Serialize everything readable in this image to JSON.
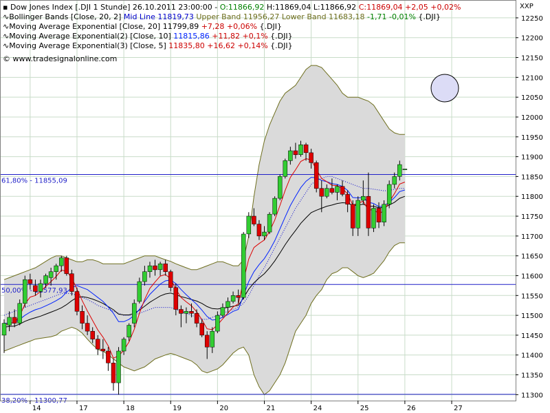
{
  "colors": {
    "up": "#32cd32",
    "down": "#dd0000",
    "band_fill": "#dadada",
    "band_line": "#6e6e1e",
    "mid_line": "#0000cc",
    "ema20": "#000000",
    "ema10": "#0022ff",
    "ema5": "#dd0000",
    "fib": "#1e1ec8",
    "grid": "#c8dcc8",
    "marker_fill": "#dcdcf6",
    "marker_stroke": "#000000"
  },
  "header": {
    "line1": {
      "prefix": "Dow Jones Index [.DJI  1 Stunde] 26.10.2011 23:00:00 - ",
      "open": "O:11866,92",
      "hl": " H:11869,04 L:11866,92 ",
      "close": "C:11869,04 +2,05 +0,02%"
    },
    "line2": {
      "prefix": "Bollinger Bands [Close, 20, 2] ",
      "mid": "Mid Line 11819,73",
      "upper": " Upper Band 11956,27",
      "lower": " Lower Band 11683,18",
      "change": " -1,71 -0,01%",
      "suffix": " {.DJI}"
    },
    "line3": {
      "prefix": "Moving Average Exponential [Close, 20] 11799,89 ",
      "change": "+7,28 +0,06%",
      "suffix": " {.DJI}"
    },
    "line4": {
      "prefix": "Moving Average Exponential(2) [Close, 10] ",
      "value": "11815,86",
      "change": " +11,82 +0,1%",
      "suffix": " {.DJI}"
    },
    "line5": {
      "prefix": "Moving Average Exponential(3) [Close, 5] ",
      "value": "11835,80",
      "change": " +16,62 +0,14%",
      "suffix": " {.DJI}"
    },
    "credit": "© www.tradesignalonline.com"
  },
  "exchange_label": "XXP",
  "fib_levels": [
    {
      "label": "61,80% - 11855,09",
      "value": 11855.09
    },
    {
      "label": "50,00% - 11577,93",
      "value": 11577.93
    },
    {
      "label": "38,20% - 11300,77",
      "value": 11300.77
    }
  ],
  "chart_data": {
    "type": "candlestick",
    "title": "Dow Jones Index [.DJI  1 Stunde]",
    "ylim": [
      11285,
      12295
    ],
    "yticks": [
      11300,
      11350,
      11400,
      11450,
      11500,
      11550,
      11600,
      11650,
      11700,
      11750,
      11800,
      11850,
      11900,
      11950,
      12000,
      12050,
      12100,
      12150,
      12200,
      12250
    ],
    "y_tick_labels": [
      "11300",
      "11350",
      "11400",
      "11450",
      "11500",
      "11550",
      "11600",
      "11650",
      "11700",
      "11750",
      "11800",
      "11850",
      "11900",
      "11950",
      "12000",
      "12050",
      "12100",
      "12150",
      "12200",
      "12250"
    ],
    "x_day_labels": [
      {
        "label": "14",
        "index": 5
      },
      {
        "label": "17",
        "index": 14
      },
      {
        "label": "18",
        "index": 23
      },
      {
        "label": "19",
        "index": 32
      },
      {
        "label": "20",
        "index": 41
      },
      {
        "label": "21",
        "index": 50
      },
      {
        "label": "24",
        "index": 59
      },
      {
        "label": "25",
        "index": 68
      },
      {
        "label": "26",
        "index": 77
      },
      {
        "label": "27",
        "index": 86
      }
    ],
    "candles": [
      {
        "o": 11450,
        "h": 11490,
        "l": 11405,
        "c": 11480
      },
      {
        "o": 11475,
        "h": 11510,
        "l": 11460,
        "c": 11495
      },
      {
        "o": 11495,
        "h": 11515,
        "l": 11470,
        "c": 11480
      },
      {
        "o": 11480,
        "h": 11540,
        "l": 11475,
        "c": 11530
      },
      {
        "o": 11530,
        "h": 11600,
        "l": 11520,
        "c": 11590
      },
      {
        "o": 11590,
        "h": 11605,
        "l": 11565,
        "c": 11580
      },
      {
        "o": 11575,
        "h": 11590,
        "l": 11550,
        "c": 11560
      },
      {
        "o": 11560,
        "h": 11590,
        "l": 11545,
        "c": 11580
      },
      {
        "o": 11580,
        "h": 11605,
        "l": 11570,
        "c": 11600
      },
      {
        "o": 11595,
        "h": 11620,
        "l": 11575,
        "c": 11610
      },
      {
        "o": 11610,
        "h": 11630,
        "l": 11590,
        "c": 11625
      },
      {
        "o": 11625,
        "h": 11650,
        "l": 11610,
        "c": 11645
      },
      {
        "o": 11645,
        "h": 11650,
        "l": 11600,
        "c": 11605
      },
      {
        "o": 11605,
        "h": 11615,
        "l": 11550,
        "c": 11560
      },
      {
        "o": 11560,
        "h": 11570,
        "l": 11500,
        "c": 11510
      },
      {
        "o": 11510,
        "h": 11525,
        "l": 11465,
        "c": 11480
      },
      {
        "o": 11480,
        "h": 11500,
        "l": 11450,
        "c": 11460
      },
      {
        "o": 11460,
        "h": 11470,
        "l": 11430,
        "c": 11440
      },
      {
        "o": 11440,
        "h": 11450,
        "l": 11400,
        "c": 11415
      },
      {
        "o": 11415,
        "h": 11440,
        "l": 11390,
        "c": 11410
      },
      {
        "o": 11410,
        "h": 11420,
        "l": 11360,
        "c": 11380
      },
      {
        "o": 11380,
        "h": 11390,
        "l": 11310,
        "c": 11330
      },
      {
        "o": 11330,
        "h": 11420,
        "l": 11300,
        "c": 11410
      },
      {
        "o": 11410,
        "h": 11445,
        "l": 11400,
        "c": 11440
      },
      {
        "o": 11445,
        "h": 11480,
        "l": 11435,
        "c": 11475
      },
      {
        "o": 11480,
        "h": 11540,
        "l": 11470,
        "c": 11530
      },
      {
        "o": 11535,
        "h": 11595,
        "l": 11530,
        "c": 11585
      },
      {
        "o": 11585,
        "h": 11625,
        "l": 11575,
        "c": 11610
      },
      {
        "o": 11610,
        "h": 11635,
        "l": 11595,
        "c": 11625
      },
      {
        "o": 11625,
        "h": 11640,
        "l": 11600,
        "c": 11615
      },
      {
        "o": 11615,
        "h": 11635,
        "l": 11600,
        "c": 11630
      },
      {
        "o": 11630,
        "h": 11640,
        "l": 11600,
        "c": 11610
      },
      {
        "o": 11610,
        "h": 11615,
        "l": 11560,
        "c": 11570
      },
      {
        "o": 11570,
        "h": 11580,
        "l": 11500,
        "c": 11515
      },
      {
        "o": 11515,
        "h": 11525,
        "l": 11470,
        "c": 11505
      },
      {
        "o": 11505,
        "h": 11520,
        "l": 11480,
        "c": 11510
      },
      {
        "o": 11510,
        "h": 11530,
        "l": 11495,
        "c": 11505
      },
      {
        "o": 11505,
        "h": 11515,
        "l": 11470,
        "c": 11480
      },
      {
        "o": 11480,
        "h": 11490,
        "l": 11445,
        "c": 11450
      },
      {
        "o": 11450,
        "h": 11460,
        "l": 11390,
        "c": 11420
      },
      {
        "o": 11420,
        "h": 11470,
        "l": 11405,
        "c": 11460
      },
      {
        "o": 11460,
        "h": 11510,
        "l": 11455,
        "c": 11500
      },
      {
        "o": 11500,
        "h": 11530,
        "l": 11495,
        "c": 11520
      },
      {
        "o": 11520,
        "h": 11545,
        "l": 11505,
        "c": 11535
      },
      {
        "o": 11535,
        "h": 11560,
        "l": 11530,
        "c": 11550
      },
      {
        "o": 11550,
        "h": 11565,
        "l": 11530,
        "c": 11545
      },
      {
        "o": 11545,
        "h": 11710,
        "l": 11540,
        "c": 11705
      },
      {
        "o": 11705,
        "h": 11760,
        "l": 11695,
        "c": 11750
      },
      {
        "o": 11750,
        "h": 11770,
        "l": 11725,
        "c": 11730
      },
      {
        "o": 11730,
        "h": 11740,
        "l": 11690,
        "c": 11700
      },
      {
        "o": 11700,
        "h": 11725,
        "l": 11690,
        "c": 11710
      },
      {
        "o": 11710,
        "h": 11760,
        "l": 11705,
        "c": 11755
      },
      {
        "o": 11755,
        "h": 11800,
        "l": 11750,
        "c": 11795
      },
      {
        "o": 11795,
        "h": 11855,
        "l": 11790,
        "c": 11850
      },
      {
        "o": 11850,
        "h": 11895,
        "l": 11845,
        "c": 11890
      },
      {
        "o": 11890,
        "h": 11925,
        "l": 11880,
        "c": 11915
      },
      {
        "o": 11915,
        "h": 11935,
        "l": 11895,
        "c": 11905
      },
      {
        "o": 11905,
        "h": 11940,
        "l": 11900,
        "c": 11930
      },
      {
        "o": 11930,
        "h": 11935,
        "l": 11890,
        "c": 11910
      },
      {
        "o": 11910,
        "h": 11920,
        "l": 11870,
        "c": 11885
      },
      {
        "o": 11885,
        "h": 11890,
        "l": 11810,
        "c": 11820
      },
      {
        "o": 11820,
        "h": 11840,
        "l": 11760,
        "c": 11800
      },
      {
        "o": 11800,
        "h": 11830,
        "l": 11795,
        "c": 11820
      },
      {
        "o": 11820,
        "h": 11845,
        "l": 11805,
        "c": 11810
      },
      {
        "o": 11810,
        "h": 11830,
        "l": 11790,
        "c": 11825
      },
      {
        "o": 11825,
        "h": 11840,
        "l": 11800,
        "c": 11805
      },
      {
        "o": 11805,
        "h": 11815,
        "l": 11760,
        "c": 11780
      },
      {
        "o": 11780,
        "h": 11790,
        "l": 11700,
        "c": 11720
      },
      {
        "o": 11720,
        "h": 11800,
        "l": 11700,
        "c": 11790
      },
      {
        "o": 11790,
        "h": 11840,
        "l": 11780,
        "c": 11800
      },
      {
        "o": 11800,
        "h": 11860,
        "l": 11700,
        "c": 11720
      },
      {
        "o": 11720,
        "h": 11780,
        "l": 11710,
        "c": 11770
      },
      {
        "o": 11770,
        "h": 11785,
        "l": 11720,
        "c": 11735
      },
      {
        "o": 11735,
        "h": 11790,
        "l": 11725,
        "c": 11780
      },
      {
        "o": 11780,
        "h": 11840,
        "l": 11770,
        "c": 11830
      },
      {
        "o": 11830,
        "h": 11860,
        "l": 11820,
        "c": 11850
      },
      {
        "o": 11850,
        "h": 11890,
        "l": 11840,
        "c": 11880
      },
      {
        "o": 11867,
        "h": 11869,
        "l": 11867,
        "c": 11869
      }
    ],
    "bollinger_upper": [
      11590,
      11595,
      11600,
      11605,
      11610,
      11615,
      11620,
      11628,
      11636,
      11644,
      11650,
      11650,
      11645,
      11640,
      11635,
      11635,
      11640,
      11640,
      11636,
      11630,
      11630,
      11630,
      11630,
      11630,
      11635,
      11640,
      11645,
      11650,
      11650,
      11650,
      11645,
      11640,
      11636,
      11630,
      11625,
      11620,
      11615,
      11615,
      11620,
      11625,
      11630,
      11635,
      11635,
      11630,
      11625,
      11625,
      11640,
      11700,
      11800,
      11880,
      11940,
      11980,
      12010,
      12040,
      12060,
      12070,
      12080,
      12100,
      12120,
      12130,
      12130,
      12125,
      12110,
      12095,
      12080,
      12060,
      12050,
      12050,
      12050,
      12045,
      12040,
      12030,
      12010,
      11990,
      11970,
      11960,
      11956,
      11956
    ],
    "bollinger_mid": [
      11500,
      11505,
      11510,
      11515,
      11520,
      11525,
      11530,
      11535,
      11540,
      11545,
      11550,
      11555,
      11555,
      11555,
      11550,
      11545,
      11540,
      11533,
      11525,
      11520,
      11515,
      11510,
      11505,
      11500,
      11500,
      11500,
      11505,
      11510,
      11515,
      11520,
      11520,
      11520,
      11520,
      11515,
      11510,
      11505,
      11500,
      11495,
      11490,
      11490,
      11495,
      11500,
      11505,
      11510,
      11515,
      11520,
      11530,
      11550,
      11575,
      11600,
      11620,
      11645,
      11670,
      11695,
      11720,
      11745,
      11770,
      11790,
      11810,
      11830,
      11840,
      11845,
      11850,
      11850,
      11845,
      11840,
      11835,
      11830,
      11825,
      11820,
      11820,
      11818,
      11816,
      11814,
      11815,
      11818,
      11820,
      11820
    ],
    "bollinger_lower": [
      11410,
      11415,
      11420,
      11425,
      11430,
      11435,
      11440,
      11442,
      11444,
      11446,
      11450,
      11460,
      11465,
      11470,
      11465,
      11455,
      11440,
      11426,
      11414,
      11410,
      11400,
      11390,
      11380,
      11370,
      11365,
      11360,
      11365,
      11370,
      11380,
      11390,
      11395,
      11400,
      11404,
      11400,
      11395,
      11390,
      11385,
      11375,
      11360,
      11355,
      11360,
      11365,
      11375,
      11390,
      11405,
      11415,
      11420,
      11400,
      11350,
      11320,
      11300,
      11310,
      11330,
      11350,
      11380,
      11420,
      11460,
      11480,
      11500,
      11530,
      11550,
      11565,
      11590,
      11605,
      11610,
      11620,
      11620,
      11610,
      11600,
      11595,
      11600,
      11606,
      11622,
      11638,
      11660,
      11676,
      11683,
      11683
    ],
    "ema20": [
      11470,
      11472,
      11473,
      11478,
      11485,
      11490,
      11494,
      11498,
      11503,
      11508,
      11513,
      11519,
      11527,
      11537,
      11545,
      11547,
      11545,
      11541,
      11536,
      11530,
      11522,
      11514,
      11503,
      11501,
      11501,
      11505,
      11513,
      11523,
      11533,
      11541,
      11549,
      11554,
      11556,
      11552,
      11547,
      11544,
      11540,
      11536,
      11530,
      11522,
      11517,
      11516,
      11518,
      11520,
      11523,
      11525,
      11544,
      11566,
      11582,
      11594,
      11605,
      11620,
      11637,
      11657,
      11678,
      11697,
      11714,
      11732,
      11746,
      11759,
      11765,
      11770,
      11775,
      11778,
      11782,
      11784,
      11783,
      11777,
      11778,
      11780,
      11775,
      11775,
      11771,
      11772,
      11778,
      11785,
      11795,
      11800
    ],
    "ema10": [
      11480,
      11480,
      11482,
      11490,
      11500,
      11508,
      11514,
      11518,
      11524,
      11530,
      11537,
      11545,
      11558,
      11570,
      11575,
      11570,
      11565,
      11555,
      11545,
      11535,
      11521,
      11505,
      11484,
      11484,
      11490,
      11500,
      11515,
      11535,
      11553,
      11566,
      11579,
      11587,
      11589,
      11580,
      11565,
      11552,
      11540,
      11528,
      11513,
      11497,
      11488,
      11490,
      11495,
      11502,
      11510,
      11515,
      11550,
      11585,
      11610,
      11628,
      11643,
      11664,
      11688,
      11718,
      11748,
      11777,
      11800,
      11822,
      11838,
      11848,
      11847,
      11840,
      11837,
      11832,
      11830,
      11825,
      11815,
      11797,
      11796,
      11797,
      11785,
      11782,
      11774,
      11776,
      11785,
      11797,
      11812,
      11816
    ],
    "ema5": [
      11475,
      11480,
      11482,
      11498,
      11529,
      11546,
      11550,
      11560,
      11573,
      11585,
      11598,
      11614,
      11611,
      11594,
      11566,
      11537,
      11511,
      11487,
      11463,
      11445,
      11423,
      11392,
      11398,
      11412,
      11433,
      11465,
      11505,
      11540,
      11568,
      11584,
      11599,
      11603,
      11592,
      11566,
      11545,
      11534,
      11524,
      11509,
      11489,
      11466,
      11464,
      11476,
      11491,
      11506,
      11521,
      11529,
      11588,
      11642,
      11671,
      11681,
      11690,
      11712,
      11740,
      11777,
      11815,
      11848,
      11867,
      11888,
      11895,
      11892,
      11868,
      11845,
      11837,
      11828,
      11827,
      11820,
      11806,
      11778,
      11782,
      11788,
      11765,
      11767,
      11756,
      11764,
      11786,
      11807,
      11831,
      11836
    ]
  }
}
